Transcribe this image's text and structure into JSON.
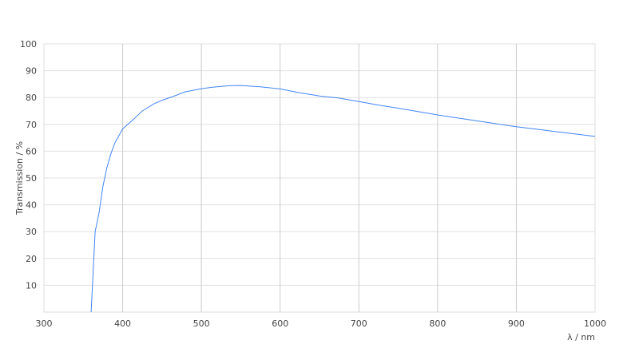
{
  "chart_data": {
    "type": "line",
    "title": "",
    "xlabel": "λ / nm",
    "ylabel": "Transmission / %",
    "xlim": [
      300,
      1000
    ],
    "ylim": [
      0,
      100
    ],
    "grid": true,
    "x_ticks": [
      "300",
      "400",
      "500",
      "600",
      "700",
      "800",
      "900",
      "1000"
    ],
    "y_ticks": [
      "10",
      "20",
      "30",
      "40",
      "50",
      "60",
      "70",
      "80",
      "90",
      "100"
    ],
    "line_color": "#4285f4",
    "series": [
      {
        "x": [
          360,
          365,
          370,
          375,
          380,
          385,
          390,
          400,
          413,
          425,
          440,
          450,
          464,
          479,
          500,
          513,
          535,
          550,
          575,
          600,
          625,
          650,
          675,
          700,
          725,
          750,
          775,
          800,
          825,
          850,
          875,
          900,
          925,
          950,
          975,
          1000
        ],
        "y": [
          0,
          30,
          37,
          47,
          54,
          59,
          63,
          68.3,
          71.7,
          75,
          77.7,
          79,
          80.4,
          82.1,
          83.3,
          83.8,
          84.4,
          84.5,
          84,
          83.2,
          81.8,
          80.6,
          79.8,
          78.5,
          77.2,
          76,
          74.8,
          73.5,
          72.4,
          71.3,
          70.2,
          69.1,
          68.2,
          67.3,
          66.4,
          65.5
        ]
      }
    ]
  }
}
